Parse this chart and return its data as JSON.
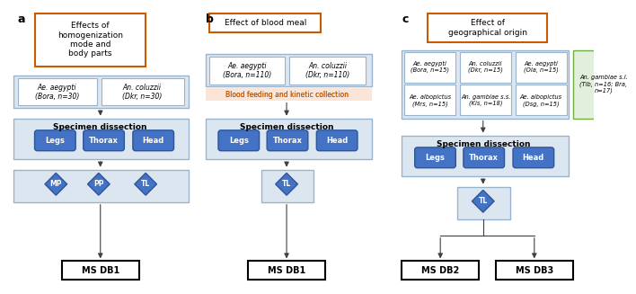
{
  "panel_a": {
    "label": "a",
    "title": "Effects of\nhomogenization\nmode and\nbody parts",
    "title_color": "#c85a00",
    "species_box": {
      "items": [
        "Ae. aegypti\n(Bora, n=30)",
        "An. coluzzii\n(Dkr, n=30)"
      ],
      "box_color": "#dce6f1",
      "border_color": "#9ab3cc"
    },
    "dissection_box": {
      "title": "Specimen dissection",
      "parts": [
        "Legs",
        "Thorax",
        "Head"
      ],
      "box_color": "#dce6f1",
      "border_color": "#9ab3cc",
      "part_color": "#4472c4"
    },
    "diamond_box": {
      "items": [
        "MP",
        "PP",
        "TL"
      ],
      "box_color": "#dce6f1",
      "border_color": "#9ab3cc",
      "diamond_color": "#4472c4"
    },
    "db_label": "MS DB1"
  },
  "panel_b": {
    "label": "b",
    "title": "Effect of blood meal",
    "title_color": "#c85a00",
    "species_box": {
      "items": [
        "Ae. aegypti\n(Bora, n=110)",
        "An. coluzzii\n(Dkr, n=110)"
      ],
      "box_color": "#dce6f1",
      "border_color": "#9ab3cc"
    },
    "kinetic_label": "Blood feeding and kinetic collection",
    "kinetic_color": "#f4b183",
    "dissection_box": {
      "title": "Specimen dissection",
      "parts": [
        "Legs",
        "Thorax",
        "Head"
      ],
      "box_color": "#dce6f1",
      "border_color": "#9ab3cc",
      "part_color": "#4472c4"
    },
    "diamond_box": {
      "items": [
        "TL"
      ],
      "box_color": "#dce6f1",
      "border_color": "#9ab3cc",
      "diamond_color": "#4472c4"
    },
    "db_label": "MS DB1"
  },
  "panel_c": {
    "label": "c",
    "title": "Effect of\ngeographical origin",
    "title_color": "#c85a00",
    "blue_group": {
      "rows": [
        [
          "Ae. aegypti\n(Bora, n=15)",
          "An. coluzzii\n(Dkr, n=15)",
          "Ae. aegypti\n(Ola, n=15)"
        ],
        [
          "Ae. albopictus\n(Mrs, n=15)",
          "An. gambiae s.s.\n(Kis, n=18)",
          "Ae. albopictus\n(Dsg, n=15)"
        ]
      ],
      "box_color": "#dce6f1",
      "border_color": "#9ab3cc"
    },
    "green_group": {
      "items": [
        "An. gambiae s.l.\n(Tib, n=16; Bra,\nn=17)"
      ],
      "box_color": "#e2efda",
      "border_color": "#70ad47"
    },
    "dissection_box": {
      "title": "Specimen dissection",
      "parts": [
        "Legs",
        "Thorax",
        "Head"
      ],
      "box_color": "#dce6f1",
      "border_color": "#9ab3cc",
      "part_color": "#4472c4"
    },
    "diamond_box": {
      "items": [
        "TL"
      ],
      "box_color": "#dce6f1",
      "border_color": "#9ab3cc",
      "diamond_color": "#4472c4"
    },
    "db_label2": "MS DB2",
    "db_label3": "MS DB3"
  },
  "bg_color": "#ffffff",
  "arrow_color": "#404040",
  "box_border_color": "#000000",
  "text_color": "#000000",
  "font_family": "Arial"
}
